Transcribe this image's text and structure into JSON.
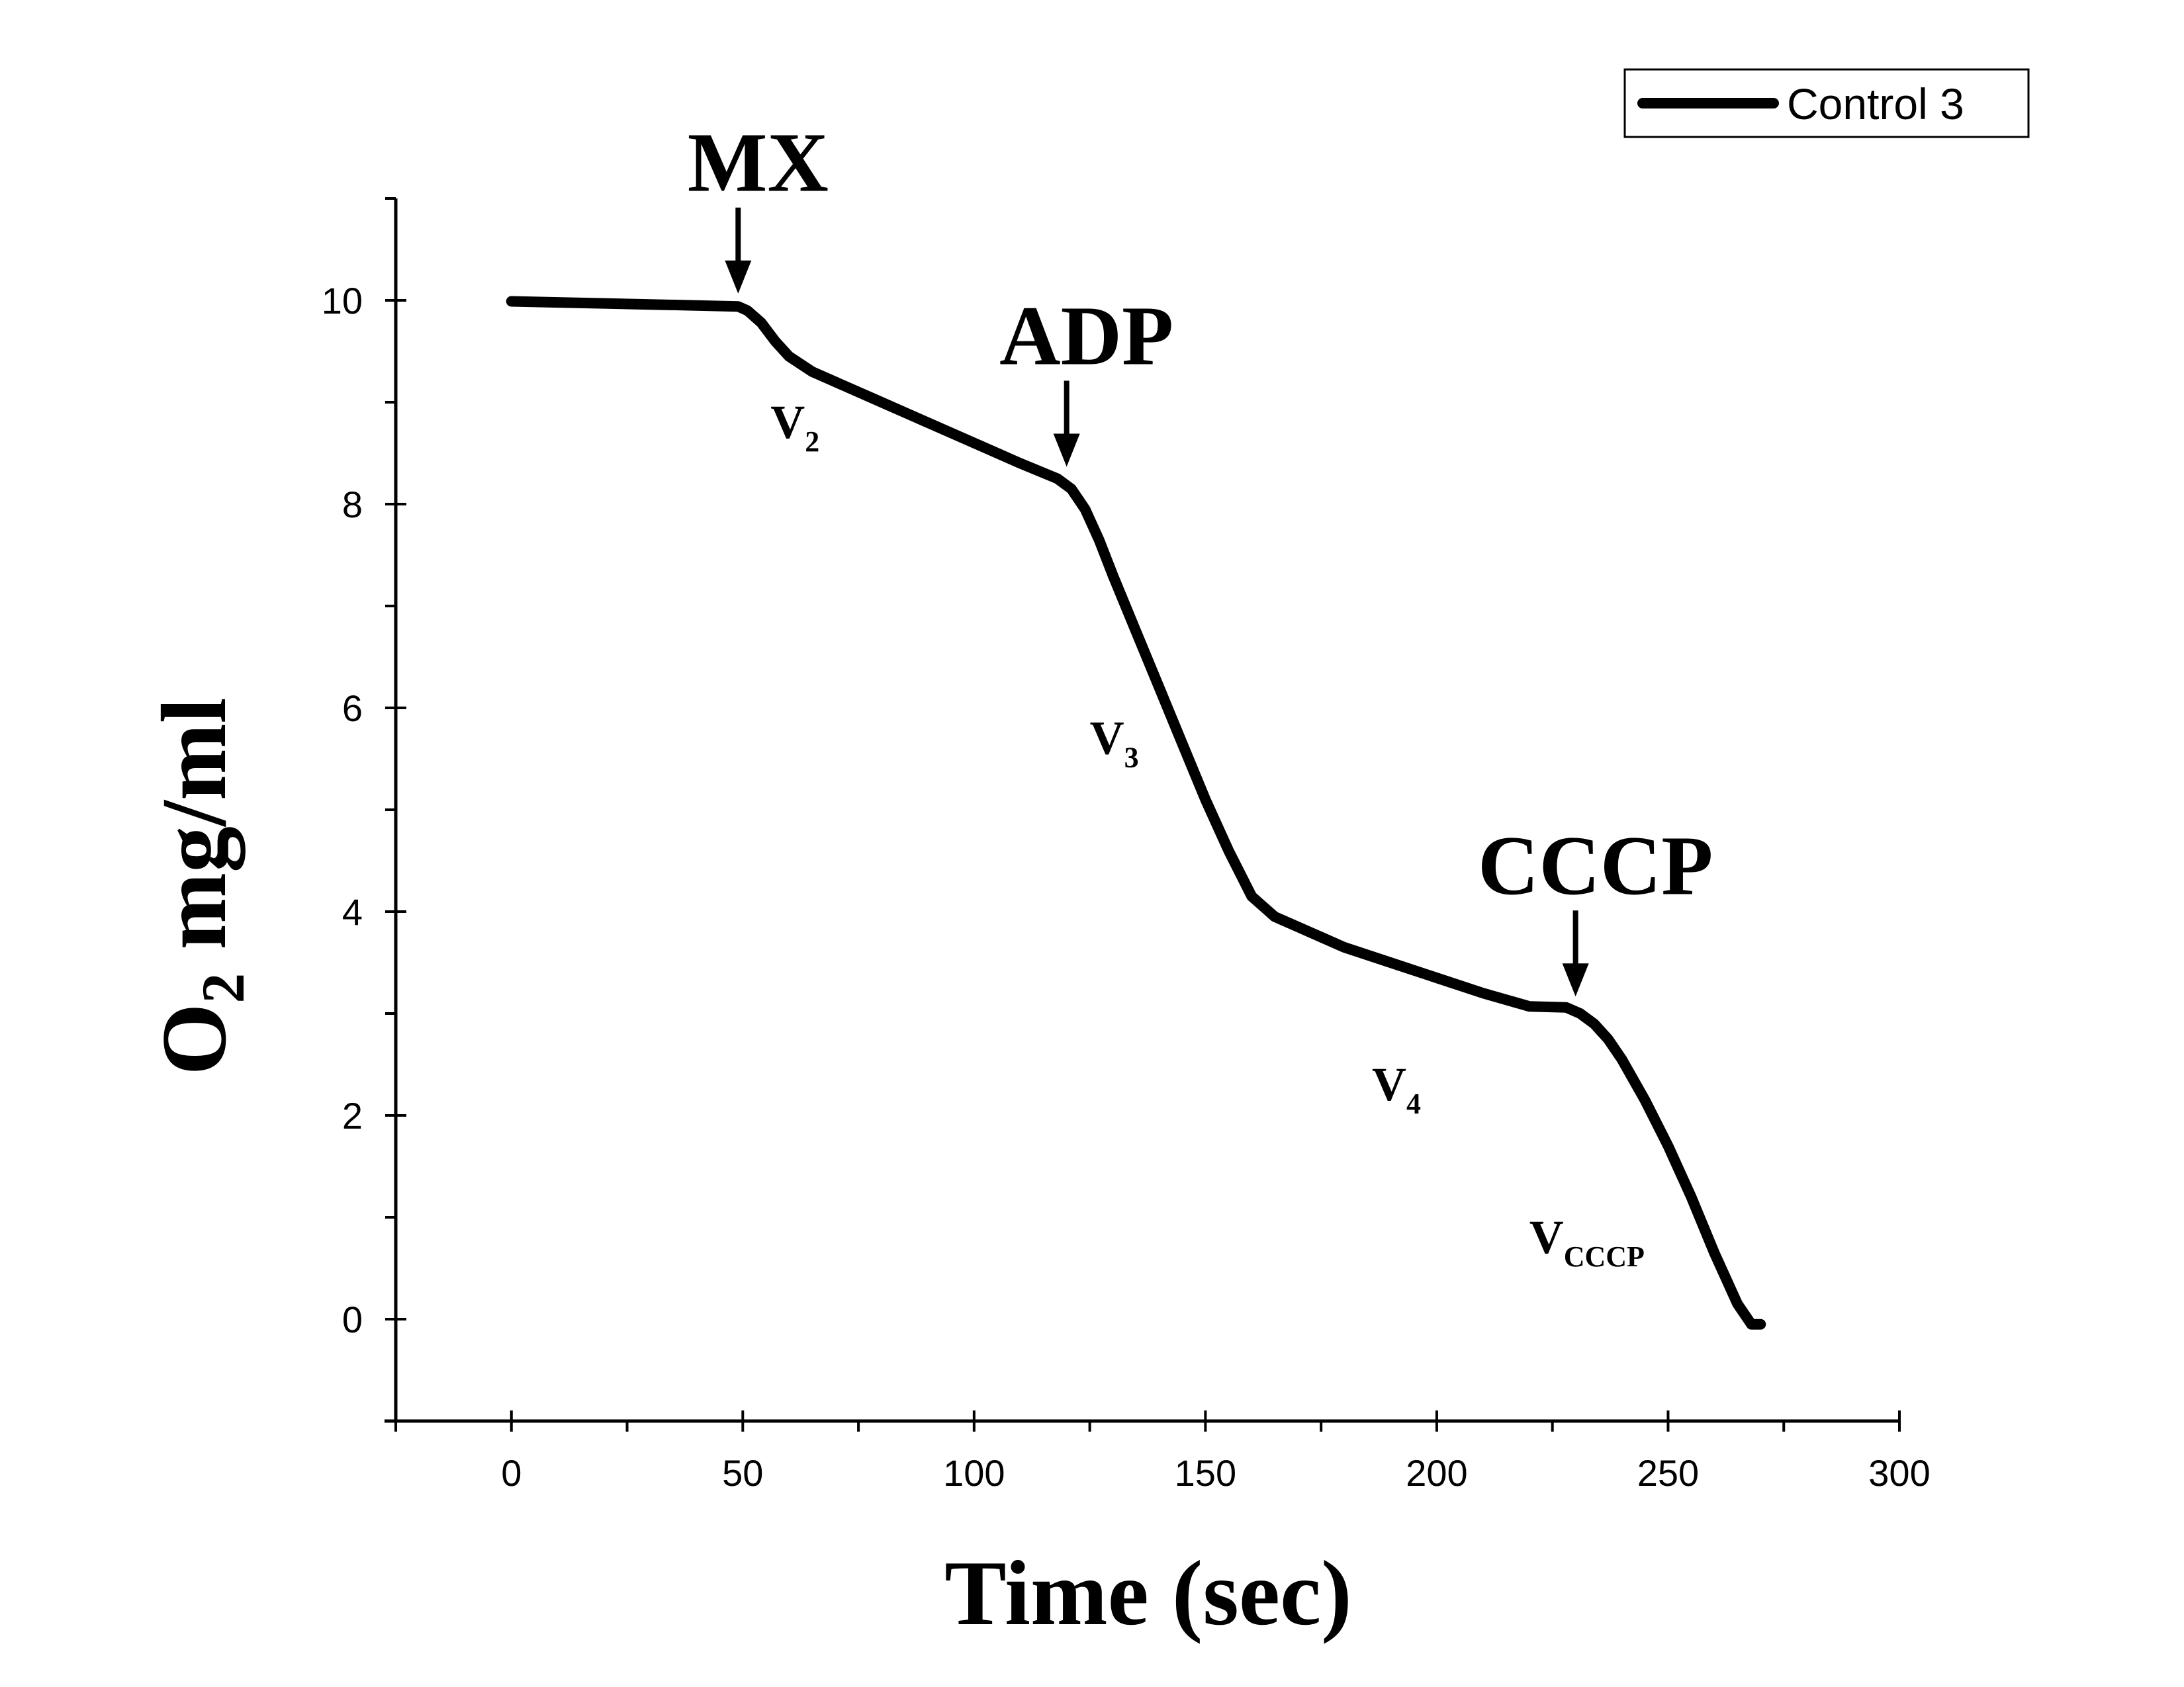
{
  "chart_data": {
    "type": "line",
    "xlabel": "Time (sec)",
    "ylabel": "O",
    "ylabel_sub": "2",
    "ylabel_suffix": " mg/ml",
    "xlim": [
      -25,
      300
    ],
    "ylim": [
      -1,
      11
    ],
    "x_ticks": [
      0,
      50,
      100,
      150,
      200,
      250,
      300
    ],
    "y_ticks": [
      0,
      2,
      4,
      6,
      8,
      10
    ],
    "legend_placement": "top-right",
    "series": [
      {
        "name": "Control 3",
        "color": "#000000",
        "x": [
          0,
          10,
          20,
          30,
          40,
          49,
          51,
          54,
          57,
          60,
          65,
          70,
          80,
          90,
          100,
          110,
          118,
          121,
          124,
          127,
          130,
          135,
          140,
          145,
          150,
          155,
          160,
          165,
          170,
          175,
          180,
          190,
          200,
          210,
          220,
          228,
          231,
          234,
          237,
          240,
          245,
          250,
          255,
          260,
          265,
          268,
          270
        ],
        "y": [
          9.99,
          9.98,
          9.97,
          9.96,
          9.95,
          9.94,
          9.9,
          9.78,
          9.6,
          9.45,
          9.3,
          9.2,
          9.0,
          8.8,
          8.6,
          8.4,
          8.25,
          8.15,
          7.95,
          7.65,
          7.3,
          6.75,
          6.2,
          5.65,
          5.1,
          4.6,
          4.15,
          3.95,
          3.85,
          3.75,
          3.65,
          3.5,
          3.35,
          3.2,
          3.07,
          3.06,
          3.0,
          2.9,
          2.75,
          2.55,
          2.15,
          1.7,
          1.2,
          0.65,
          0.15,
          -0.05,
          -0.05
        ]
      }
    ],
    "annotations": [
      {
        "text": "MX",
        "x": 49,
        "y": 9.95
      },
      {
        "text": "ADP",
        "x": 120,
        "y": 8.25
      },
      {
        "text": "CCCP",
        "x": 230,
        "y": 3.05
      }
    ],
    "rate_labels": [
      {
        "text": "V",
        "sub": "2",
        "x": 56,
        "y": 8.65
      },
      {
        "text": "V",
        "sub": "3",
        "x": 125,
        "y": 5.55
      },
      {
        "text": "V",
        "sub": "4",
        "x": 186,
        "y": 2.15
      },
      {
        "text": "V",
        "sub": "CCCP",
        "x": 220,
        "y": 0.65
      }
    ]
  }
}
